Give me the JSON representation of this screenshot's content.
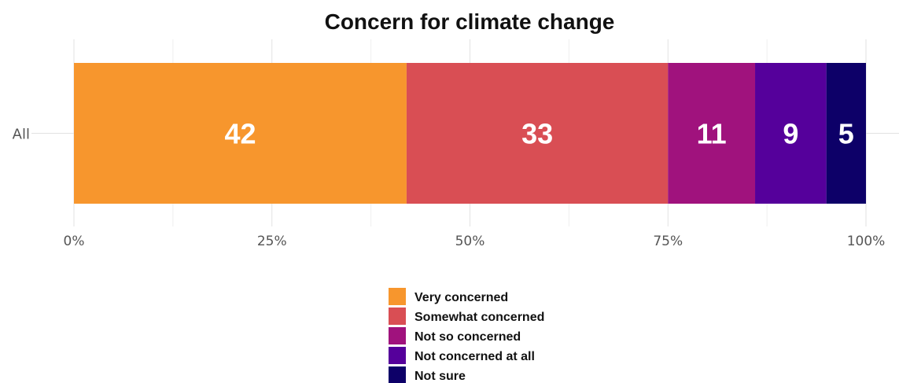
{
  "chart_data": {
    "type": "bar",
    "orientation": "horizontal",
    "stacked": true,
    "title": "Concern for climate change",
    "categories": [
      "All"
    ],
    "series": [
      {
        "name": "Very concerned",
        "values": [
          42
        ],
        "color": "#F7962D"
      },
      {
        "name": "Somewhat concerned",
        "values": [
          33
        ],
        "color": "#D94E54"
      },
      {
        "name": "Not so concerned",
        "values": [
          11
        ],
        "color": "#A0127D"
      },
      {
        "name": "Not concerned at all",
        "values": [
          9
        ],
        "color": "#55009B"
      },
      {
        "name": "Not sure",
        "values": [
          5
        ],
        "color": "#0D0068"
      }
    ],
    "x_ticks": [
      "0%",
      "25%",
      "50%",
      "75%",
      "100%"
    ],
    "xlim": [
      0,
      100
    ],
    "grid": true,
    "legend_position": "bottom"
  }
}
